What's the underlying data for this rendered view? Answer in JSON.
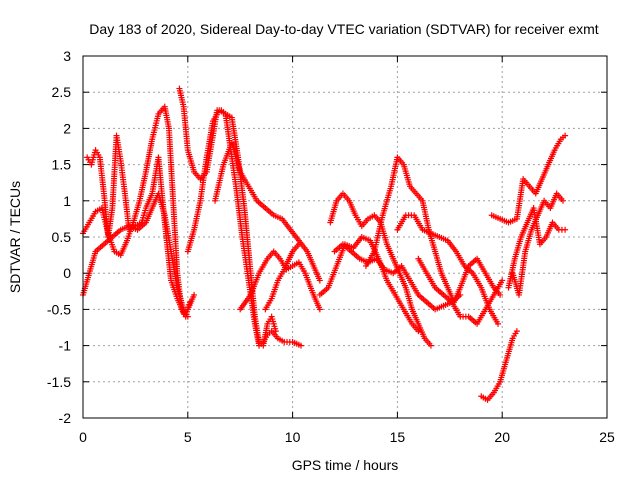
{
  "chart_data": {
    "type": "scatter",
    "title": "Day 183 of 2020, Sidereal Day-to-day VTEC variation (SDTVAR) for receiver exmt",
    "xlabel": "GPS time / hours",
    "ylabel": "SDTVAR / TECUs",
    "xlim": [
      0,
      25
    ],
    "ylim": [
      -2,
      3
    ],
    "xticks": [
      0,
      5,
      10,
      15,
      20,
      25
    ],
    "yticks": [
      -2,
      -1.5,
      -1,
      -0.5,
      0,
      0.5,
      1,
      1.5,
      2,
      2.5,
      3
    ],
    "xtick_labels": [
      "0",
      "5",
      "10",
      "15",
      "20",
      "25"
    ],
    "ytick_labels": [
      "-2",
      "-1.5",
      "-1",
      "-0.5",
      "0",
      "0.5",
      "1",
      "1.5",
      "2",
      "2.5",
      "3"
    ],
    "grid": true,
    "marker": "+",
    "color": "#ff0000",
    "series": [
      {
        "name": "s1",
        "x": [
          0.0,
          0.3,
          0.6,
          0.9,
          1.2,
          1.5,
          1.8,
          2.1,
          2.4,
          2.7,
          3.0,
          3.3,
          3.6,
          3.9,
          4.1,
          4.3,
          4.5,
          4.7,
          4.9,
          5.1
        ],
        "y": [
          0.55,
          0.7,
          0.85,
          0.9,
          0.55,
          0.3,
          0.25,
          0.45,
          0.7,
          1.0,
          1.4,
          1.85,
          2.2,
          2.3,
          2.0,
          1.0,
          0.0,
          -0.5,
          -0.6,
          -0.4
        ]
      },
      {
        "name": "s2",
        "x": [
          0.2,
          0.4,
          0.6,
          0.8,
          1.0,
          1.2,
          1.4,
          1.6,
          1.8,
          2.0,
          2.2,
          2.5,
          2.8,
          3.0,
          3.3,
          3.6,
          3.9,
          4.2,
          4.5,
          4.8,
          5.0,
          5.3
        ],
        "y": [
          1.6,
          1.5,
          1.7,
          1.6,
          1.1,
          0.5,
          0.9,
          1.9,
          1.55,
          1.1,
          0.6,
          0.65,
          0.7,
          0.9,
          1.1,
          1.6,
          0.7,
          -0.1,
          -0.35,
          -0.55,
          -0.5,
          -0.3
        ]
      },
      {
        "name": "s3",
        "x": [
          0.0,
          0.3,
          0.6,
          1.0,
          1.4,
          1.8,
          2.2,
          2.6,
          3.0,
          3.3,
          3.6,
          3.9,
          4.2,
          4.5,
          4.8,
          5.0
        ],
        "y": [
          -0.3,
          0.0,
          0.3,
          0.4,
          0.5,
          0.6,
          0.65,
          0.6,
          0.7,
          0.9,
          1.1,
          0.8,
          0.3,
          -0.2,
          -0.5,
          -0.6
        ]
      },
      {
        "name": "s4",
        "x": [
          4.6,
          4.8,
          5.0,
          5.3,
          5.6,
          5.9,
          6.2,
          6.4,
          6.6,
          6.8,
          7.0,
          7.3,
          7.6,
          7.9,
          8.2,
          8.4,
          8.6,
          8.8,
          9.0,
          9.3,
          9.6,
          10.0,
          10.4
        ],
        "y": [
          2.55,
          2.3,
          1.7,
          1.4,
          1.3,
          1.4,
          1.9,
          2.25,
          2.25,
          2.2,
          1.8,
          1.2,
          0.5,
          -0.1,
          -0.7,
          -1.0,
          -0.95,
          -0.85,
          -0.8,
          -0.9,
          -0.95,
          -0.95,
          -1.0
        ]
      },
      {
        "name": "s5",
        "x": [
          5.0,
          5.3,
          5.6,
          5.9,
          6.2,
          6.5,
          6.8,
          7.1,
          7.4,
          7.7,
          8.0,
          8.2,
          8.4,
          8.6,
          8.8,
          9.0,
          9.2
        ],
        "y": [
          0.3,
          0.6,
          1.0,
          1.6,
          2.1,
          2.25,
          2.2,
          2.15,
          1.6,
          0.9,
          0.0,
          -0.6,
          -0.95,
          -1.0,
          -0.7,
          -0.6,
          -0.8
        ]
      },
      {
        "name": "s6",
        "x": [
          6.3,
          6.7,
          7.1,
          7.5,
          7.9,
          8.3,
          8.7,
          9.1,
          9.5,
          9.9,
          10.3,
          10.7,
          11.0,
          11.3
        ],
        "y": [
          1.0,
          1.5,
          1.8,
          1.4,
          1.2,
          1.0,
          0.9,
          0.8,
          0.75,
          0.6,
          0.45,
          0.3,
          0.1,
          -0.1
        ]
      },
      {
        "name": "s7",
        "x": [
          7.5,
          8.0,
          8.4,
          8.8,
          9.1,
          9.4,
          9.7,
          10.0,
          10.3,
          10.6,
          11.0,
          11.3
        ],
        "y": [
          -0.5,
          -0.3,
          0.0,
          0.2,
          0.3,
          0.2,
          0.05,
          0.1,
          0.15,
          0.0,
          -0.3,
          -0.5
        ]
      },
      {
        "name": "s8",
        "x": [
          8.7,
          9.0,
          9.3,
          9.6,
          10.0,
          10.3
        ],
        "y": [
          -0.5,
          -0.35,
          -0.1,
          0.05,
          0.3,
          0.4
        ]
      },
      {
        "name": "s9",
        "x": [
          11.8,
          12.1,
          12.4,
          12.7,
          13.0,
          13.3,
          13.6,
          13.9,
          14.2,
          14.5,
          14.8,
          15.1,
          15.4,
          15.7,
          16.0,
          16.3,
          16.6
        ],
        "y": [
          0.7,
          1.0,
          1.1,
          1.0,
          0.8,
          0.65,
          0.75,
          0.8,
          0.7,
          0.4,
          0.2,
          0.0,
          -0.2,
          -0.5,
          -0.7,
          -0.9,
          -1.0
        ]
      },
      {
        "name": "s10",
        "x": [
          11.3,
          11.7,
          12.1,
          12.5,
          12.9,
          13.3,
          13.7,
          14.1,
          14.5,
          14.9,
          15.3,
          15.7,
          16.0
        ],
        "y": [
          -0.3,
          -0.2,
          0.1,
          0.4,
          0.35,
          0.5,
          0.45,
          0.2,
          -0.1,
          -0.3,
          -0.5,
          -0.7,
          -0.8
        ]
      },
      {
        "name": "s11",
        "x": [
          12.0,
          12.4,
          12.8,
          13.2,
          13.6,
          14.0,
          14.4,
          14.8,
          15.2,
          15.6,
          16.0,
          16.4,
          16.8,
          17.2,
          17.6,
          18.0
        ],
        "y": [
          0.3,
          0.4,
          0.3,
          0.2,
          0.15,
          0.2,
          0.05,
          0.0,
          0.1,
          -0.1,
          -0.3,
          -0.4,
          -0.5,
          -0.45,
          -0.4,
          -0.3
        ]
      },
      {
        "name": "s12",
        "x": [
          13.5,
          13.9,
          14.3,
          14.7,
          15.0,
          15.3,
          15.6,
          15.9,
          16.2,
          16.5,
          16.8,
          17.1,
          17.4,
          17.7,
          18.0,
          18.4,
          18.8,
          19.2,
          19.6,
          19.9
        ],
        "y": [
          0.1,
          0.3,
          0.8,
          1.2,
          1.6,
          1.5,
          1.2,
          1.1,
          1.0,
          0.6,
          0.3,
          0.0,
          -0.2,
          -0.4,
          -0.2,
          0.1,
          0.2,
          0.0,
          -0.2,
          -0.3
        ]
      },
      {
        "name": "s13",
        "x": [
          15.0,
          15.4,
          15.8,
          16.2,
          16.6,
          17.0,
          17.4,
          17.8,
          18.2,
          18.6,
          19.0,
          19.4,
          19.8
        ],
        "y": [
          0.6,
          0.8,
          0.8,
          0.6,
          0.55,
          0.5,
          0.45,
          0.3,
          0.1,
          0.0,
          -0.2,
          -0.5,
          -0.7
        ]
      },
      {
        "name": "s14",
        "x": [
          16.0,
          16.4,
          16.8,
          17.2,
          17.6,
          18.0,
          18.4,
          18.8,
          19.2,
          19.6,
          20.0
        ],
        "y": [
          0.2,
          0.0,
          -0.2,
          -0.3,
          -0.4,
          -0.6,
          -0.6,
          -0.7,
          -0.5,
          -0.3,
          -0.1
        ]
      },
      {
        "name": "s15",
        "x": [
          19.0,
          19.3,
          19.6,
          19.9,
          20.2,
          20.5,
          20.7
        ],
        "y": [
          -1.7,
          -1.75,
          -1.65,
          -1.5,
          -1.2,
          -0.9,
          -0.8
        ]
      },
      {
        "name": "s16",
        "x": [
          19.5,
          19.9,
          20.3,
          20.7,
          21.0,
          21.3,
          21.6,
          21.9,
          22.2,
          22.5,
          22.8,
          23.0
        ],
        "y": [
          0.8,
          0.75,
          0.7,
          0.75,
          1.3,
          1.2,
          1.1,
          1.3,
          1.5,
          1.7,
          1.85,
          1.9
        ]
      },
      {
        "name": "s17",
        "x": [
          20.3,
          20.6,
          20.9,
          21.2,
          21.5,
          21.8,
          22.1,
          22.4,
          22.7,
          23.0
        ],
        "y": [
          -0.2,
          0.2,
          0.5,
          0.7,
          0.9,
          0.4,
          0.5,
          0.7,
          0.6,
          0.6
        ]
      },
      {
        "name": "s18",
        "x": [
          20.5,
          20.8,
          21.1,
          21.4,
          21.7,
          22.0,
          22.3,
          22.6,
          22.9
        ],
        "y": [
          0.0,
          -0.3,
          0.3,
          0.6,
          0.8,
          1.0,
          0.9,
          1.1,
          1.0
        ]
      }
    ]
  }
}
